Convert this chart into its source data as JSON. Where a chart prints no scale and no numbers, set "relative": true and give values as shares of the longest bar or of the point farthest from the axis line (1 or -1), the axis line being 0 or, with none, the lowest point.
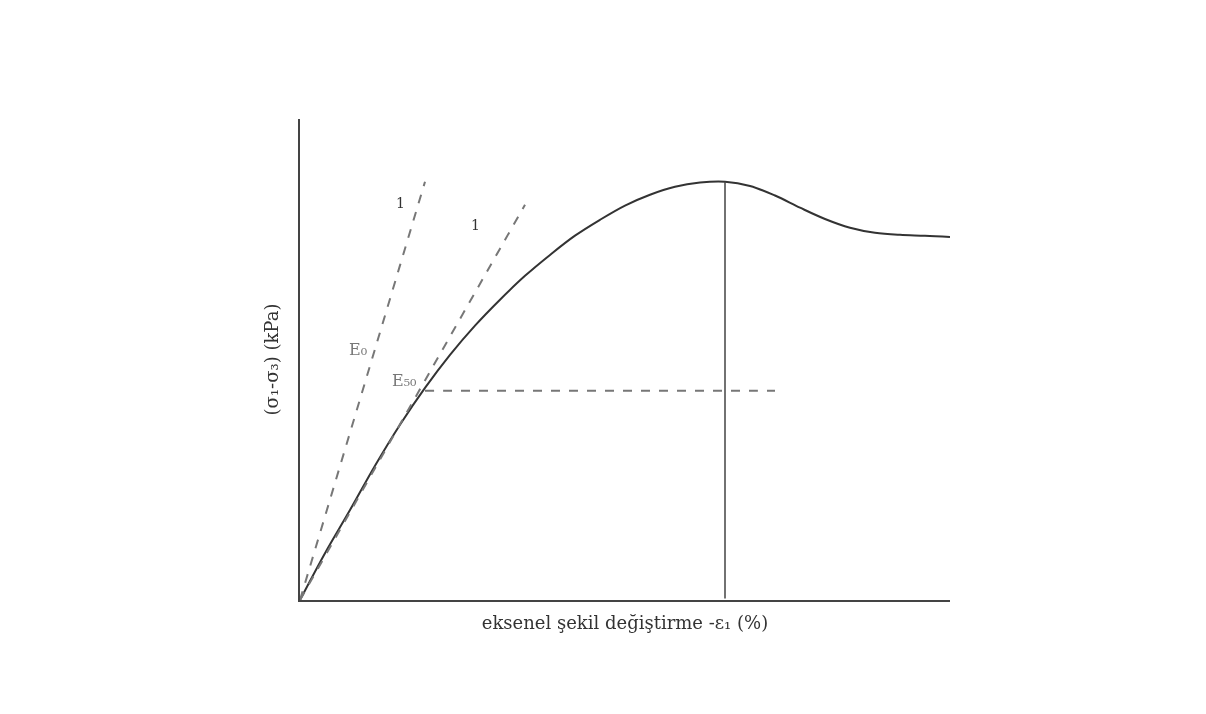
{
  "chart_data": {
    "type": "line",
    "relative": true,
    "legend": false,
    "xlabel": "eksenel şekil değiştirme -ε₁ (%)",
    "ylabel": "(σ₁-σ₃) (kPa)",
    "annotations": [
      "1",
      "1"
    ],
    "categories": [
      null,
      null,
      null,
      null,
      null,
      null,
      null,
      null,
      null,
      null,
      null,
      null,
      null,
      null,
      null,
      null,
      null,
      null,
      null,
      null,
      null,
      null,
      null,
      null,
      null,
      null,
      null
    ],
    "series": [
      {
        "color": "#333333",
        "line_style": "solid",
        "values": [
          0,
          0.112,
          0.215,
          0.321,
          0.419,
          0.507,
          0.586,
          0.656,
          0.718,
          0.775,
          0.825,
          0.871,
          0.909,
          0.943,
          0.969,
          0.988,
          0.998,
          1,
          0.99,
          0.967,
          0.938,
          0.911,
          0.89,
          0.878,
          0.873,
          0.871,
          0.868
        ]
      },
      {
        "name": "E₀",
        "color": "#777777",
        "line_style": "dashed",
        "values": [
          0,
          0.2,
          0.4,
          0.6,
          0.8,
          1.0,
          null,
          null,
          null,
          null,
          null,
          null,
          null,
          null,
          null,
          null,
          null,
          null,
          null,
          null,
          null,
          null,
          null,
          null,
          null,
          null,
          null
        ]
      },
      {
        "name": "E₅₀",
        "color": "#777777",
        "line_style": "dashed",
        "values": [
          0,
          0.105,
          0.21,
          0.315,
          0.42,
          0.525,
          0.63,
          0.735,
          0.84,
          0.945,
          null,
          null,
          null,
          null,
          null,
          null,
          null,
          null,
          null,
          null,
          null,
          null,
          null,
          null,
          null,
          null,
          null
        ]
      },
      {
        "color": "#777777",
        "line_style": "dashed",
        "values": [
          null,
          null,
          null,
          null,
          null,
          0.5,
          0.5,
          0.5,
          0.5,
          0.5,
          0.5,
          0.5,
          0.5,
          0.5,
          0.5,
          0.5,
          0.5,
          0.5,
          0.5,
          0.5,
          null,
          null,
          null,
          null,
          null,
          null,
          null
        ]
      }
    ]
  }
}
